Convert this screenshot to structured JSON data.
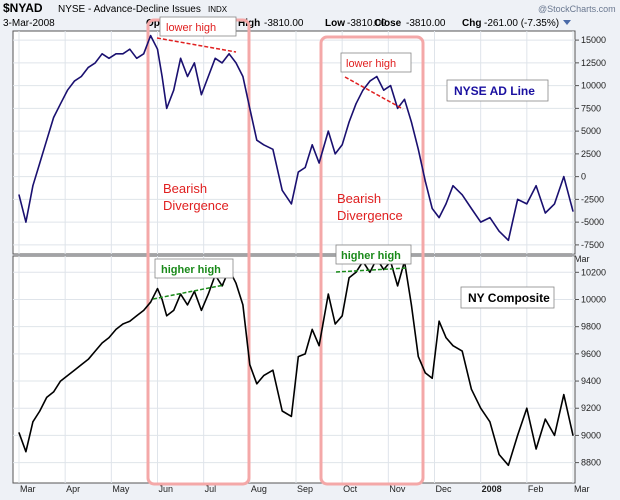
{
  "header": {
    "symbol": "$NYAD",
    "description": "NYSE - Advance-Decline Issues",
    "exchange_tag": "INDX",
    "date": "3-Mar-2008",
    "open_label": "Open",
    "high_label": "High",
    "high_value": "-3810.00",
    "low_label": "Low",
    "low_value": "-3810.00",
    "close_label": "Close",
    "close_value": "-3810.00",
    "chg_label": "Chg",
    "chg_value": "-261.00 (-7.35%)",
    "watermark": "@StockCharts.com"
  },
  "colors": {
    "ad_line": "#1a1070",
    "composite": "#000000",
    "highlight_box": "#f4a8a8",
    "red_trend": "#e02020",
    "green_trend": "#1a8a1a",
    "panel_bg": "#ffffff",
    "outer_bg": "#eef1f6",
    "grid": "#dfe4ea"
  },
  "annotations": {
    "lower_high_1": "lower high",
    "lower_high_2": "lower high",
    "higher_high_1": "higher high",
    "higher_high_2": "higher high",
    "bearish_1_line1": "Bearish",
    "bearish_1_line2": "Divergence",
    "bearish_2_line1": "Bearish",
    "bearish_2_line2": "Divergence"
  },
  "x_axis": {
    "labels": [
      "Mar",
      "Apr",
      "May",
      "Jun",
      "Jul",
      "Aug",
      "Sep",
      "Oct",
      "Nov",
      "Dec",
      "2008",
      "Feb",
      "Mar"
    ],
    "bold_index": 10
  },
  "chart_data": [
    {
      "type": "line",
      "legend": "NYSE AD Line",
      "y_ticks": [
        15000,
        12500,
        10000,
        7500,
        5000,
        2500,
        0,
        -2500,
        -5000,
        -7500
      ],
      "y_tick_labels": [
        "15000",
        "12500",
        "10000",
        "7500",
        "5000",
        "2500",
        "0",
        "-2500",
        "-5000",
        "-7500"
      ],
      "ylim": [
        -8500,
        16000
      ],
      "xlim": [
        0,
        12
      ],
      "x": [
        0,
        0.15,
        0.3,
        0.45,
        0.6,
        0.75,
        0.9,
        1.05,
        1.2,
        1.35,
        1.5,
        1.65,
        1.8,
        1.95,
        2.1,
        2.25,
        2.4,
        2.55,
        2.7,
        2.85,
        3.0,
        3.1,
        3.2,
        3.35,
        3.5,
        3.65,
        3.8,
        3.95,
        4.1,
        4.25,
        4.4,
        4.55,
        4.7,
        4.85,
        5.0,
        5.15,
        5.3,
        5.5,
        5.7,
        5.9,
        6.05,
        6.2,
        6.35,
        6.5,
        6.7,
        6.85,
        7.0,
        7.15,
        7.3,
        7.45,
        7.6,
        7.75,
        7.9,
        8.05,
        8.2,
        8.35,
        8.5,
        8.65,
        8.8,
        8.95,
        9.1,
        9.25,
        9.4,
        9.6,
        9.8,
        10.0,
        10.2,
        10.4,
        10.6,
        10.8,
        11.0,
        11.2,
        11.4,
        11.6,
        11.8,
        12.0
      ],
      "y": [
        -2000,
        -5000,
        -1000,
        1500,
        4000,
        6500,
        8000,
        9500,
        10500,
        11000,
        12000,
        12500,
        13500,
        13000,
        13500,
        13500,
        14000,
        13000,
        13500,
        15500,
        14000,
        11000,
        7500,
        9500,
        13000,
        11000,
        12500,
        9000,
        11000,
        13000,
        12500,
        13500,
        12500,
        11000,
        7500,
        4000,
        3500,
        3000,
        -1500,
        -3000,
        500,
        1000,
        3500,
        1500,
        5000,
        2500,
        3500,
        6000,
        8000,
        9500,
        10500,
        11000,
        9500,
        10000,
        7500,
        8500,
        6000,
        3000,
        -500,
        -3500,
        -4500,
        -3000,
        -1000,
        -2000,
        -3500,
        -5000,
        -4500,
        -6000,
        -7000,
        -2500,
        -3000,
        -1000,
        -4000,
        -3000,
        0,
        -3810
      ]
    },
    {
      "type": "line",
      "legend": "NY Composite",
      "y_ticks": [
        10200,
        10000,
        9800,
        9600,
        9400,
        9200,
        9000,
        8800
      ],
      "y_tick_labels": [
        "10200",
        "10000",
        "9800",
        "9600",
        "9400",
        "9200",
        "9000",
        "8800"
      ],
      "ylim": [
        8650,
        10320
      ],
      "xlim": [
        0,
        12
      ],
      "x": [
        0,
        0.15,
        0.3,
        0.45,
        0.6,
        0.75,
        0.9,
        1.05,
        1.2,
        1.35,
        1.5,
        1.65,
        1.8,
        1.95,
        2.1,
        2.25,
        2.4,
        2.55,
        2.7,
        2.85,
        3.0,
        3.1,
        3.2,
        3.35,
        3.5,
        3.65,
        3.8,
        3.95,
        4.1,
        4.25,
        4.4,
        4.55,
        4.7,
        4.85,
        5.0,
        5.15,
        5.3,
        5.5,
        5.7,
        5.9,
        6.05,
        6.2,
        6.35,
        6.5,
        6.7,
        6.85,
        7.0,
        7.15,
        7.3,
        7.45,
        7.6,
        7.75,
        7.9,
        8.05,
        8.2,
        8.35,
        8.5,
        8.65,
        8.8,
        8.95,
        9.1,
        9.25,
        9.4,
        9.6,
        9.8,
        10.0,
        10.2,
        10.4,
        10.6,
        10.8,
        11.0,
        11.2,
        11.4,
        11.6,
        11.8,
        12.0
      ],
      "y": [
        9020,
        8880,
        9100,
        9180,
        9280,
        9320,
        9400,
        9440,
        9480,
        9520,
        9560,
        9620,
        9680,
        9720,
        9780,
        9820,
        9840,
        9880,
        9920,
        9980,
        10080,
        10000,
        9880,
        9920,
        10040,
        9960,
        10060,
        9920,
        10040,
        10180,
        10100,
        10220,
        10120,
        9960,
        9520,
        9380,
        9440,
        9480,
        9180,
        9140,
        9580,
        9600,
        9780,
        9660,
        10040,
        9820,
        9880,
        10160,
        10200,
        10280,
        10200,
        10300,
        10220,
        10280,
        10100,
        10280,
        9960,
        9580,
        9460,
        9420,
        9840,
        9720,
        9660,
        9620,
        9340,
        9200,
        9100,
        8860,
        8780,
        9000,
        9200,
        8900,
        9120,
        9000,
        9300,
        9000
      ]
    }
  ]
}
